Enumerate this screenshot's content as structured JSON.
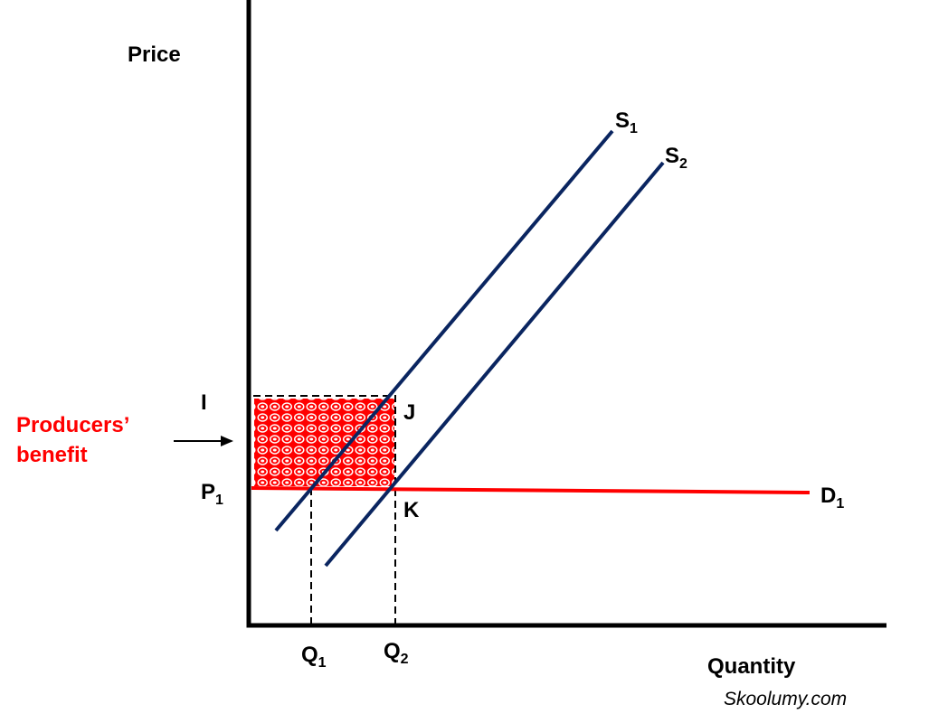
{
  "axes": {
    "y_label": "Price",
    "x_label": "Quantity"
  },
  "points": {
    "i": "I",
    "j": "J",
    "k": "K"
  },
  "curves": {
    "s1": {
      "main": "S",
      "sub": "1"
    },
    "s2": {
      "main": "S",
      "sub": "2"
    },
    "d1": {
      "main": "D",
      "sub": "1"
    }
  },
  "levels": {
    "p1": {
      "main": "P",
      "sub": "1"
    },
    "q1": {
      "main": "Q",
      "sub": "1"
    },
    "q2": {
      "main": "Q",
      "sub": "2"
    }
  },
  "annotation": {
    "line1": "Producers’",
    "line2": "benefit"
  },
  "source": "Skoolumy.com"
}
